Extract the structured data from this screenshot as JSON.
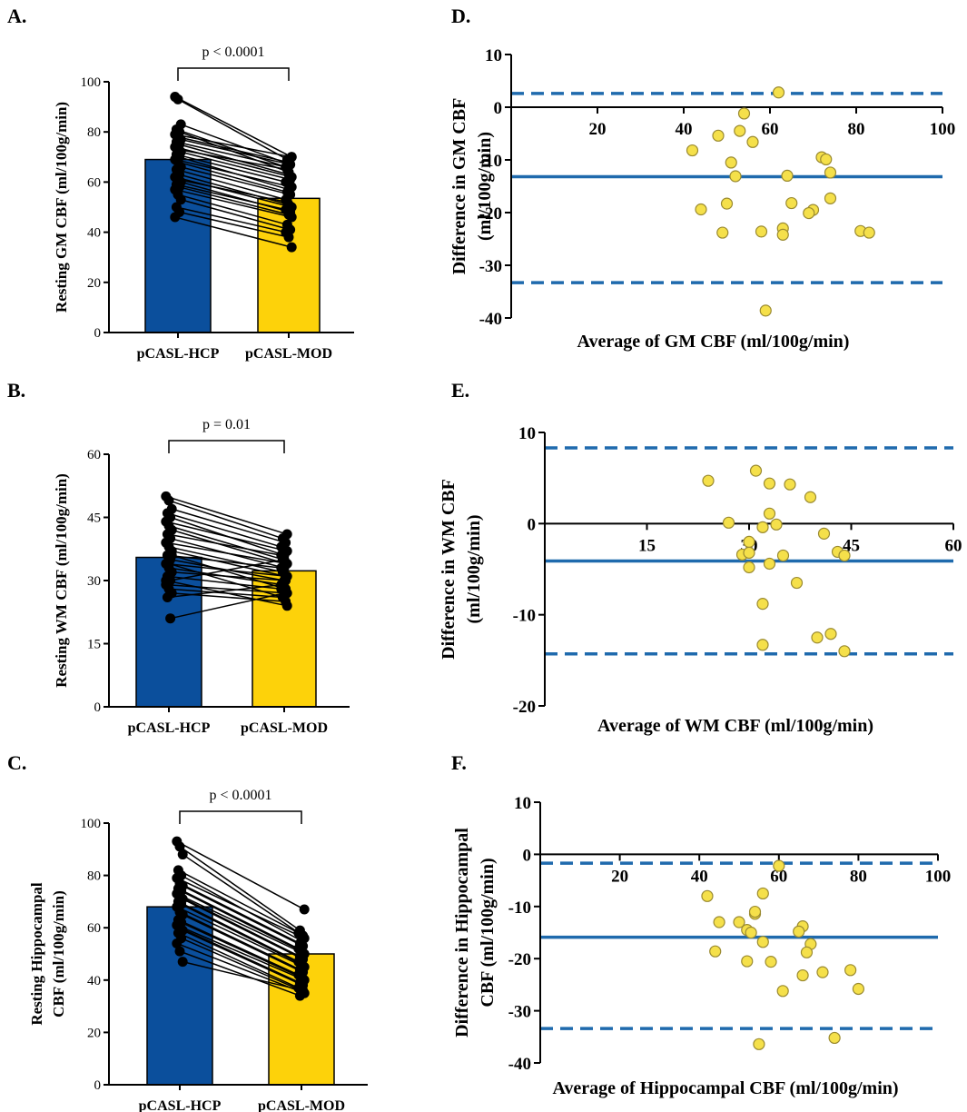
{
  "figure_labels": [
    "A.",
    "B.",
    "C.",
    "D.",
    "E.",
    "F."
  ],
  "colors": {
    "hcp": "#0b4f9c",
    "mod": "#fdd20a",
    "mod_point": "#f5e04a",
    "point_edge": "#9a8a30",
    "line": "#1f6aad",
    "axis": "#000000"
  },
  "chart_data": [
    {
      "id": "A",
      "type": "bar",
      "label": "A.",
      "title": "",
      "xlabel": "",
      "ylabel": "Resting GM CBF (ml/100g/min)",
      "categories": [
        "pCASL-HCP",
        "pCASL-MOD"
      ],
      "values": [
        69,
        53.5
      ],
      "ylim": [
        0,
        100
      ],
      "yticks": [
        0,
        20,
        40,
        60,
        80,
        100
      ],
      "significance": "p < 0.0001",
      "paired_points": [
        [
          94,
          70
        ],
        [
          93,
          69
        ],
        [
          83,
          67
        ],
        [
          81,
          66
        ],
        [
          80,
          64
        ],
        [
          79,
          70
        ],
        [
          78,
          68
        ],
        [
          77,
          67
        ],
        [
          76,
          66
        ],
        [
          75,
          63
        ],
        [
          74,
          62
        ],
        [
          73,
          65
        ],
        [
          72,
          61
        ],
        [
          71,
          60
        ],
        [
          70,
          57
        ],
        [
          69,
          58
        ],
        [
          68,
          56
        ],
        [
          66,
          55
        ],
        [
          65,
          53
        ],
        [
          63,
          51
        ],
        [
          62,
          50
        ],
        [
          61,
          52
        ],
        [
          60,
          48
        ],
        [
          59,
          49
        ],
        [
          58,
          47
        ],
        [
          57,
          46
        ],
        [
          55,
          43
        ],
        [
          53,
          41
        ],
        [
          50,
          40
        ],
        [
          48,
          38
        ],
        [
          46,
          34
        ]
      ]
    },
    {
      "id": "B",
      "type": "bar",
      "label": "B.",
      "title": "",
      "xlabel": "",
      "ylabel": "Resting WM CBF (ml/100g/min)",
      "categories": [
        "pCASL-HCP",
        "pCASL-MOD"
      ],
      "values": [
        35.5,
        32.3
      ],
      "ylim": [
        0,
        60
      ],
      "yticks": [
        0,
        15,
        30,
        45,
        60
      ],
      "significance": "p = 0.01",
      "paired_points": [
        [
          50,
          41
        ],
        [
          49,
          40
        ],
        [
          47,
          39
        ],
        [
          46,
          38
        ],
        [
          45,
          36
        ],
        [
          44,
          37
        ],
        [
          43,
          35
        ],
        [
          42,
          34
        ],
        [
          41,
          36
        ],
        [
          40,
          33
        ],
        [
          39,
          34
        ],
        [
          38,
          32
        ],
        [
          37,
          31
        ],
        [
          36,
          33
        ],
        [
          35,
          30
        ],
        [
          34,
          31
        ],
        [
          33,
          29
        ],
        [
          32,
          30
        ],
        [
          31,
          28
        ],
        [
          30,
          35
        ],
        [
          29,
          27
        ],
        [
          28,
          26
        ],
        [
          27,
          25
        ],
        [
          26,
          29
        ],
        [
          21,
          27
        ],
        [
          30,
          24
        ],
        [
          34,
          26
        ],
        [
          36,
          28
        ]
      ]
    },
    {
      "id": "C",
      "type": "bar",
      "label": "C.",
      "title": "",
      "xlabel": "",
      "ylabel": "Resting Hippocampal CBF (ml/100g/min)",
      "ylabel_lines": [
        "Resting Hippocampal",
        "CBF (ml/100g/min)"
      ],
      "categories": [
        "pCASL-HCP",
        "pCASL-MOD"
      ],
      "values": [
        68,
        50
      ],
      "ylim": [
        0,
        100
      ],
      "yticks": [
        0,
        20,
        40,
        60,
        80,
        100
      ],
      "significance": "p < 0.0001",
      "paired_points": [
        [
          93,
          67
        ],
        [
          91,
          59
        ],
        [
          88,
          57
        ],
        [
          82,
          58
        ],
        [
          80,
          55
        ],
        [
          79,
          56
        ],
        [
          77,
          54
        ],
        [
          76,
          53
        ],
        [
          75,
          52
        ],
        [
          74,
          51
        ],
        [
          73,
          50
        ],
        [
          72,
          49
        ],
        [
          71,
          48
        ],
        [
          70,
          47
        ],
        [
          69,
          46
        ],
        [
          68,
          45
        ],
        [
          66,
          44
        ],
        [
          65,
          43
        ],
        [
          63,
          42
        ],
        [
          62,
          41
        ],
        [
          61,
          40
        ],
        [
          60,
          39
        ],
        [
          59,
          38
        ],
        [
          58,
          37
        ],
        [
          56,
          36
        ],
        [
          54,
          35
        ],
        [
          51,
          34
        ],
        [
          47,
          36
        ]
      ]
    },
    {
      "id": "D",
      "type": "scatter",
      "label": "D.",
      "title": "",
      "xlabel": "Average of GM CBF (ml/100g/min)",
      "ylabel": "Difference in GM CBF (ml/100g/min)",
      "ylabel_lines": [
        "Difference in GM CBF",
        "(ml/100g/min)"
      ],
      "xlim": [
        0,
        100
      ],
      "xticks": [
        20,
        40,
        60,
        80,
        100
      ],
      "ylim": [
        -40,
        10
      ],
      "yticks": [
        10,
        0,
        -10,
        -20,
        -30,
        -40
      ],
      "mean_difference": -13.2,
      "upper_loa": 2.6,
      "lower_loa": -33.3,
      "points": [
        [
          62,
          2.8
        ],
        [
          54,
          -1.2
        ],
        [
          53,
          -4.5
        ],
        [
          48,
          -5.4
        ],
        [
          42,
          -8.2
        ],
        [
          56,
          -6.6
        ],
        [
          51,
          -10.5
        ],
        [
          52,
          -13.1
        ],
        [
          72,
          -9.5
        ],
        [
          73,
          -9.9
        ],
        [
          74,
          -12.4
        ],
        [
          64,
          -13.0
        ],
        [
          50,
          -18.3
        ],
        [
          65,
          -18.2
        ],
        [
          74,
          -17.3
        ],
        [
          44,
          -19.4
        ],
        [
          70,
          -19.5
        ],
        [
          69,
          -20.1
        ],
        [
          49,
          -23.8
        ],
        [
          58,
          -23.6
        ],
        [
          63,
          -23.0
        ],
        [
          63,
          -24.2
        ],
        [
          81,
          -23.5
        ],
        [
          83,
          -23.8
        ],
        [
          59,
          -38.6
        ]
      ]
    },
    {
      "id": "E",
      "type": "scatter",
      "label": "E.",
      "title": "",
      "xlabel": "Average of WM CBF (ml/100g/min)",
      "ylabel": "Difference in WM CBF (ml/100g/min)",
      "ylabel_lines": [
        "Difference in WM CBF",
        "(ml/100g/min)"
      ],
      "xlim": [
        0,
        60
      ],
      "xticks": [
        15,
        30,
        45,
        60
      ],
      "ylim": [
        -20,
        10
      ],
      "yticks": [
        10,
        0,
        -10,
        -20
      ],
      "mean_difference": -4.1,
      "upper_loa": 8.3,
      "lower_loa": -14.3,
      "points": [
        [
          24,
          4.7
        ],
        [
          31,
          5.8
        ],
        [
          33,
          4.4
        ],
        [
          36,
          4.3
        ],
        [
          39,
          2.9
        ],
        [
          33,
          1.1
        ],
        [
          27,
          0.1
        ],
        [
          34,
          -0.1
        ],
        [
          32,
          -0.4
        ],
        [
          41,
          -1.1
        ],
        [
          30,
          -2.0
        ],
        [
          29,
          -3.4
        ],
        [
          30,
          -3.2
        ],
        [
          43,
          -3.1
        ],
        [
          44,
          -3.5
        ],
        [
          35,
          -3.5
        ],
        [
          30,
          -4.8
        ],
        [
          33,
          -4.4
        ],
        [
          37,
          -6.5
        ],
        [
          32,
          -8.8
        ],
        [
          40,
          -12.5
        ],
        [
          42,
          -12.1
        ],
        [
          32,
          -13.3
        ],
        [
          44,
          -14.0
        ]
      ]
    },
    {
      "id": "F",
      "type": "scatter",
      "label": "F.",
      "title": "",
      "xlabel": "Average of Hippocampal CBF (ml/100g/min)",
      "ylabel": "Difference in Hippocampal CBF (ml/100g/min)",
      "ylabel_lines": [
        "Difference in Hippocampal",
        "CBF (ml/100g/min)"
      ],
      "xlim": [
        0,
        100
      ],
      "xticks": [
        20,
        40,
        60,
        80,
        100
      ],
      "ylim": [
        -40,
        10
      ],
      "yticks": [
        10,
        0,
        -10,
        -20,
        -30,
        -40
      ],
      "mean_difference": -15.9,
      "upper_loa": -1.7,
      "lower_loa": -33.4,
      "points": [
        [
          60,
          -2.2
        ],
        [
          42,
          -8.0
        ],
        [
          56,
          -7.5
        ],
        [
          54,
          -11.4
        ],
        [
          54,
          -11.0
        ],
        [
          45,
          -13.0
        ],
        [
          50,
          -13.0
        ],
        [
          52,
          -14.5
        ],
        [
          53,
          -15.0
        ],
        [
          66,
          -13.8
        ],
        [
          65,
          -14.8
        ],
        [
          68,
          -17.2
        ],
        [
          56,
          -16.8
        ],
        [
          67,
          -18.8
        ],
        [
          44,
          -18.6
        ],
        [
          58,
          -20.6
        ],
        [
          52,
          -20.5
        ],
        [
          66,
          -23.2
        ],
        [
          71,
          -22.6
        ],
        [
          78,
          -22.2
        ],
        [
          61,
          -26.2
        ],
        [
          80,
          -25.8
        ],
        [
          74,
          -35.2
        ],
        [
          55,
          -36.4
        ]
      ]
    }
  ]
}
